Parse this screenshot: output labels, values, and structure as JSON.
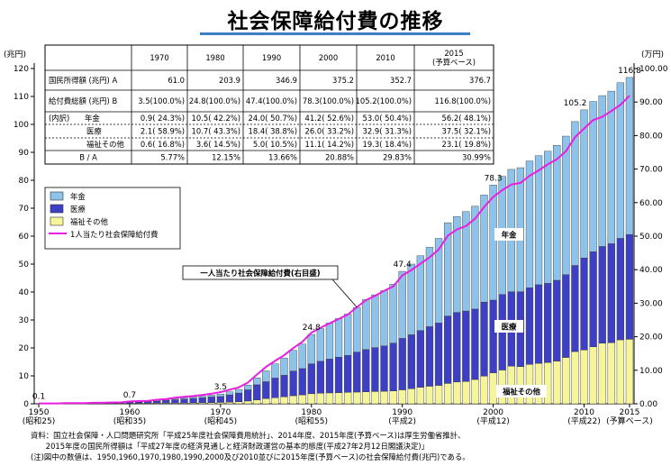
{
  "title": "社会保障給付費の推移",
  "left_axis_unit": "(兆円)",
  "right_axis_unit": "(万円)",
  "table": {
    "headers": [
      "",
      "1970",
      "1980",
      "1990",
      "2000",
      "2010",
      "2015\n(予算ベース)"
    ],
    "rows": [
      {
        "label": "国民所得額 (兆円) A",
        "cells": [
          "61.0",
          "203.9",
          "346.9",
          "375.2",
          "352.7",
          "376.7"
        ]
      },
      {
        "label": "給付費総額 (兆円) B",
        "cells": [
          "3.5(100.0%)",
          "24.8(100.0%)",
          "47.4(100.0%)",
          "78.3(100.0%)",
          "105.2(100.0%)",
          "116.8(100.0%)"
        ]
      },
      {
        "label": "(内訳)　　年金",
        "cells": [
          "0.9( 24.3%)",
          "10.5( 42.2%)",
          "24.0( 50.7%)",
          "41.2( 52.6%)",
          "53.0( 50.4%)",
          "56.2( 48.1%)"
        ]
      },
      {
        "label": "医療",
        "cells": [
          "2.1( 58.9%)",
          "10.7( 43.3%)",
          "18.4( 38.8%)",
          "26.0( 33.2%)",
          "32.9( 31.3%)",
          "37.5( 32.1%)"
        ]
      },
      {
        "label": "福祉その他",
        "cells": [
          "0.6( 16.8%)",
          "3.6( 14.5%)",
          "5.0( 10.5%)",
          "11.1( 14.2%)",
          "19.3( 18.4%)",
          "23.1( 19.8%)"
        ]
      },
      {
        "label": "B / A",
        "cells": [
          "5.77%",
          "12.15%",
          "13.66%",
          "20.88%",
          "29.83%",
          "30.99%"
        ]
      }
    ]
  },
  "legend": [
    "年金",
    "医療",
    "福祉その他",
    "1人当たり社会保障給付費"
  ],
  "annotations": {
    "per_capita_callout": "一人当たり社会保障給付費(右目盛)",
    "label_pension": "年金",
    "label_medical": "医療",
    "label_welfare": "福祉その他"
  },
  "colors": {
    "pension": "#8dc3ea",
    "medical": "#3d3fc4",
    "welfare": "#f6f59a",
    "per_capita_line": "#e81ee0",
    "bar_outline": "#333333"
  },
  "footnotes": [
    "資料：国立社会保障・人口問題研究所「平成25年度社会保障費用統計」、2014年度、2015年度(予算ベース)は厚生労働省推計、",
    "　　2015年度の国民所得額は「平成27年度の経済見通しと経済財政運営の基本的態度(平成27年2月12日閣議決定)」",
    "(注)図中の数値は、1950,1960,1970,1980,1990,2000及び2010並びに2015年度(予算ベース)の社会保障給付費(兆円)である。"
  ],
  "chart_data": {
    "type": "bar",
    "stacked": true,
    "x_tick_labels": [
      {
        "year": 1950,
        "label": "1950",
        "sub": "(昭和25)"
      },
      {
        "year": 1960,
        "label": "1960",
        "sub": "(昭和35)"
      },
      {
        "year": 1970,
        "label": "1970",
        "sub": "(昭和45)"
      },
      {
        "year": 1980,
        "label": "1980",
        "sub": "(昭和55)"
      },
      {
        "year": 1990,
        "label": "1990",
        "sub": "(平成2)"
      },
      {
        "year": 2000,
        "label": "2000",
        "sub": "(平成12)"
      },
      {
        "year": 2010,
        "label": "2010",
        "sub": "(平成22)"
      },
      {
        "year": 2015,
        "label": "2015",
        "sub": "(予算ベース)"
      }
    ],
    "left_axis": {
      "unit": "兆円",
      "ylim": [
        0,
        120
      ],
      "ticks": [
        0,
        10,
        20,
        30,
        40,
        50,
        60,
        70,
        80,
        90,
        100,
        110,
        120
      ]
    },
    "right_axis": {
      "unit": "万円",
      "ylim": [
        0,
        100
      ],
      "ticks": [
        "0.00",
        "10.00",
        "20.00",
        "30.00",
        "40.00",
        "50.00",
        "60.00",
        "70.00",
        "80.00",
        "90.00",
        "100.00"
      ]
    },
    "years": [
      1950,
      1951,
      1952,
      1953,
      1954,
      1955,
      1956,
      1957,
      1958,
      1959,
      1960,
      1961,
      1962,
      1963,
      1964,
      1965,
      1966,
      1967,
      1968,
      1969,
      1970,
      1971,
      1972,
      1973,
      1974,
      1975,
      1976,
      1977,
      1978,
      1979,
      1980,
      1981,
      1982,
      1983,
      1984,
      1985,
      1986,
      1987,
      1988,
      1989,
      1990,
      1991,
      1992,
      1993,
      1994,
      1995,
      1996,
      1997,
      1998,
      1999,
      2000,
      2001,
      2002,
      2003,
      2004,
      2005,
      2006,
      2007,
      2008,
      2009,
      2010,
      2011,
      2012,
      2013,
      2014,
      2015
    ],
    "series": [
      {
        "name": "年金",
        "values": [
          0.02,
          0.03,
          0.04,
          0.05,
          0.06,
          0.07,
          0.08,
          0.09,
          0.1,
          0.11,
          0.13,
          0.15,
          0.18,
          0.22,
          0.28,
          0.33,
          0.4,
          0.47,
          0.56,
          0.67,
          0.9,
          1.1,
          1.3,
          1.7,
          2.5,
          3.9,
          5.1,
          6.2,
          7.4,
          8.8,
          10.5,
          11.7,
          12.9,
          13.8,
          14.8,
          16.0,
          17.9,
          18.9,
          19.8,
          21.1,
          24.0,
          25.3,
          26.8,
          28.4,
          30.3,
          33.4,
          34.3,
          35.6,
          36.8,
          38.3,
          41.2,
          42.3,
          43.8,
          44.4,
          45.4,
          46.2,
          47.3,
          48.3,
          49.6,
          51.5,
          53.0,
          53.8,
          54.0,
          54.6,
          55.7,
          56.2
        ]
      },
      {
        "name": "医療",
        "values": [
          0.05,
          0.06,
          0.07,
          0.09,
          0.1,
          0.12,
          0.13,
          0.15,
          0.19,
          0.23,
          0.43,
          0.5,
          0.6,
          0.75,
          0.95,
          1.2,
          1.4,
          1.6,
          1.8,
          2.0,
          2.1,
          2.6,
          3.1,
          4.0,
          5.4,
          6.0,
          7.0,
          7.7,
          8.8,
          9.4,
          10.7,
          11.4,
          12.1,
          12.7,
          13.2,
          14.3,
          15.1,
          15.7,
          16.2,
          17.1,
          18.4,
          19.3,
          20.3,
          21.3,
          22.3,
          24.1,
          24.9,
          25.2,
          25.2,
          26.5,
          26.0,
          27.0,
          26.6,
          26.8,
          27.4,
          28.1,
          28.3,
          28.9,
          29.6,
          30.8,
          32.9,
          34.0,
          34.6,
          35.4,
          36.3,
          37.5
        ]
      },
      {
        "name": "福祉その他",
        "values": [
          0.05,
          0.05,
          0.05,
          0.06,
          0.06,
          0.06,
          0.07,
          0.07,
          0.08,
          0.09,
          0.14,
          0.15,
          0.17,
          0.2,
          0.22,
          0.25,
          0.28,
          0.32,
          0.36,
          0.43,
          0.5,
          0.6,
          0.75,
          1.0,
          1.4,
          1.9,
          2.2,
          2.5,
          2.9,
          3.2,
          3.6,
          3.8,
          3.9,
          4.0,
          4.1,
          4.2,
          4.3,
          4.4,
          4.5,
          4.6,
          5.0,
          5.4,
          5.9,
          6.3,
          6.6,
          7.3,
          7.8,
          8.0,
          8.7,
          9.9,
          11.1,
          12.1,
          13.5,
          13.3,
          14.1,
          14.5,
          14.8,
          15.3,
          16.6,
          18.7,
          19.3,
          20.4,
          21.7,
          21.9,
          22.9,
          23.1
        ]
      },
      {
        "name": "1人当たり社会保障給付費",
        "axis": "right",
        "unit": "万円",
        "values": [
          0.1,
          0.1,
          0.1,
          0.2,
          0.2,
          0.2,
          0.3,
          0.3,
          0.4,
          0.4,
          0.7,
          0.8,
          0.9,
          1.2,
          1.4,
          1.8,
          2.1,
          2.3,
          2.6,
          3.0,
          3.5,
          4.2,
          4.9,
          6.3,
          8.7,
          11.0,
          12.8,
          14.5,
          16.6,
          18.5,
          21.2,
          22.7,
          24.0,
          25.3,
          26.6,
          28.8,
          30.9,
          32.2,
          33.7,
          35.0,
          38.3,
          39.9,
          41.8,
          43.7,
          46.0,
          50.1,
          52.0,
          53.0,
          55.2,
          58.7,
          61.7,
          63.7,
          65.4,
          65.9,
          68.0,
          69.6,
          71.4,
          72.9,
          75.3,
          79.5,
          82.1,
          84.6,
          85.6,
          87.3,
          89.2,
          91.9
        ]
      }
    ],
    "data_labels": [
      {
        "year": 1950,
        "text": "0.1"
      },
      {
        "year": 1960,
        "text": "0.7"
      },
      {
        "year": 1970,
        "text": "3.5"
      },
      {
        "year": 1980,
        "text": "24.8"
      },
      {
        "year": 1990,
        "text": "47.4"
      },
      {
        "year": 2000,
        "text": "78.3"
      },
      {
        "year": 2010,
        "text": "105.2"
      },
      {
        "year": 2015,
        "text": "116.8"
      }
    ],
    "grid": false,
    "legend_position": "left"
  }
}
